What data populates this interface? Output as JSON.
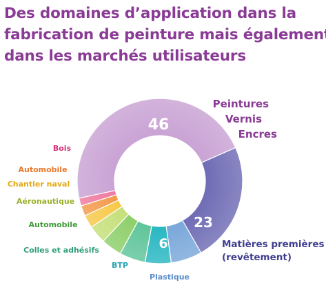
{
  "title_lines": [
    "Des domaines d’application dans la",
    "fabrication de peinture mais également",
    "dans les marchés utilisateurs"
  ],
  "chart_data": {
    "type": "pie",
    "title": "Des domaines d’application dans la fabrication de peinture mais également dans les marchés utilisateurs",
    "donut": true,
    "slices": [
      {
        "label": [
          "Peintures",
          "Vernis",
          "Encres"
        ],
        "value": 46,
        "value_label": "46",
        "color": "#c9a3d4"
      },
      {
        "label": [
          "Matières premières",
          "(revêtement)"
        ],
        "value": 23,
        "value_label": "23",
        "color": "#6f6cb5"
      },
      {
        "label": [
          "Plastique"
        ],
        "value": 6,
        "value_label": "6",
        "color": "#7aa8da"
      },
      {
        "label": [
          "BTP"
        ],
        "value": 5,
        "value_label": "",
        "color": "#2ab7c2"
      },
      {
        "label": [
          "Colles et adhésifs"
        ],
        "value": 5,
        "value_label": "",
        "color": "#5fc59a"
      },
      {
        "label": [
          "Automobile"
        ],
        "value": 4,
        "value_label": "",
        "color": "#8ecf6a"
      },
      {
        "label": [
          "Aéronautique"
        ],
        "value": 3.5,
        "value_label": "",
        "color": "#c5e07a"
      },
      {
        "label": [
          "Chantier naval"
        ],
        "value": 2.5,
        "value_label": "",
        "color": "#f7c94a"
      },
      {
        "label": [
          "Automobile"
        ],
        "value": 2,
        "value_label": "",
        "color": "#f39a4c"
      },
      {
        "label": [
          "Bois"
        ],
        "value": 1.5,
        "value_label": "",
        "color": "#ef7aa0"
      }
    ]
  }
}
